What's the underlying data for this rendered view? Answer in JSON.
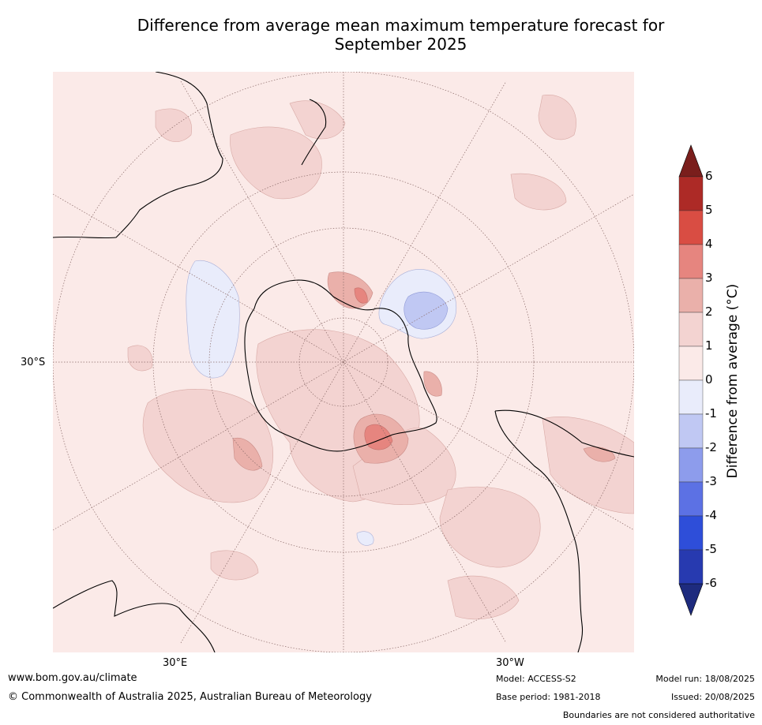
{
  "title_line1": "Difference from average mean maximum temperature forecast for",
  "title_line2": "September 2025",
  "map": {
    "projection": "south-polar-stereographic",
    "lat_label_left": "30°S",
    "lon_label_left": "30°E",
    "lon_label_right": "30°W",
    "background_color": "#fbeae8",
    "anomaly_colors": {
      "0_to_1": "#fbeae8",
      "1_to_2": "#f3d3d1",
      "2_to_3": "#eab0aa",
      "3_to_4": "#e6857f",
      "minus1_to_0": "#e9ecfb",
      "minus2_to_minus1": "#c0c8f3"
    }
  },
  "colorbar": {
    "label": "Difference from average (°C)",
    "ticks": [
      "6",
      "5",
      "4",
      "3",
      "2",
      "1",
      "0",
      "-1",
      "-2",
      "-3",
      "-4",
      "-5",
      "-6"
    ],
    "colors_top_to_bottom": [
      "#ad2a26",
      "#d94d43",
      "#e6857f",
      "#eab0aa",
      "#f3d3d1",
      "#fbeae8",
      "#e9ecfb",
      "#c0c8f3",
      "#8d9cec",
      "#5c71e4",
      "#2e4ed9",
      "#273ab0"
    ],
    "over_color": "#7a1e1c",
    "under_color": "#1e2b7e"
  },
  "footer": {
    "website": "www.bom.gov.au/climate",
    "copyright": "© Commonwealth of Australia 2025, Australian Bureau of Meteorology",
    "model": "Model: ACCESS-S2",
    "base_period": "Base period: 1981-2018",
    "model_run": "Model run: 18/08/2025",
    "issued": "Issued: 20/08/2025",
    "boundaries_note": "Boundaries are not considered authoritative"
  }
}
